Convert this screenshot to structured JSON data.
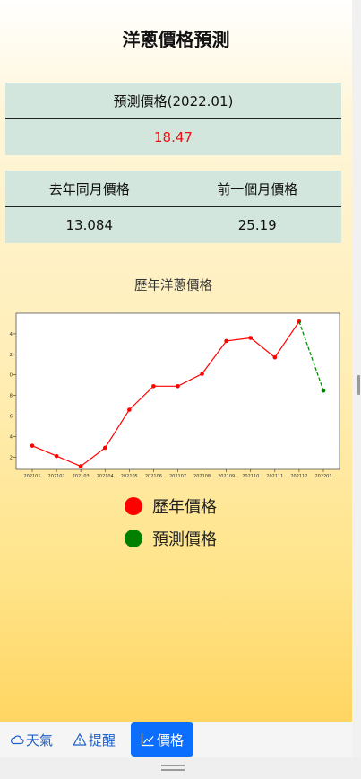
{
  "page": {
    "title": "洋蔥價格預測"
  },
  "prediction": {
    "header": "預測價格(2022.01)",
    "value": "18.47"
  },
  "comparison": {
    "headers": [
      "去年同月價格",
      "前一個月價格"
    ],
    "values": [
      "13.084",
      "25.19"
    ]
  },
  "chart_data": {
    "type": "line",
    "title": "歷年洋蔥價格",
    "x": [
      "202101",
      "202102",
      "202103",
      "202104",
      "202105",
      "202106",
      "202107",
      "202108",
      "202109",
      "202110",
      "202111",
      "202112",
      "202201"
    ],
    "series": [
      {
        "name": "歷年價格",
        "color": "#ff0000",
        "style": "solid",
        "values": [
          13.1,
          12.1,
          11.1,
          12.9,
          16.6,
          18.9,
          18.9,
          20.1,
          23.3,
          23.6,
          21.7,
          25.19,
          null
        ]
      },
      {
        "name": "預測價格",
        "color": "#008000",
        "style": "dashed",
        "values": [
          null,
          null,
          null,
          null,
          null,
          null,
          null,
          null,
          null,
          null,
          null,
          25.19,
          18.47
        ]
      }
    ],
    "yticks": [
      12,
      14,
      16,
      18,
      20,
      22,
      24
    ],
    "ylim": [
      10.8,
      26
    ],
    "grid": false
  },
  "legend": [
    {
      "label": "歷年價格",
      "color": "#ff0000"
    },
    {
      "label": "預測價格",
      "color": "#008000"
    }
  ],
  "nav": [
    {
      "label": "天氣",
      "icon": "cloud-icon",
      "active": false
    },
    {
      "label": "提醒",
      "icon": "warning-icon",
      "active": false
    },
    {
      "label": "價格",
      "icon": "chart-line-icon",
      "active": true
    }
  ]
}
